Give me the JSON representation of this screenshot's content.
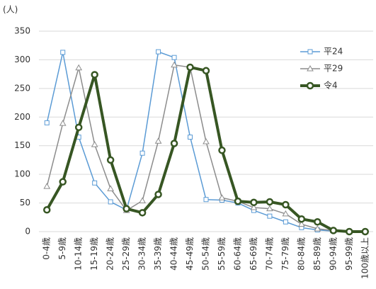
{
  "chart_data": {
    "type": "line",
    "y_label": "(人)",
    "categories": [
      "0-4歳",
      "5-9歳",
      "10-14歳",
      "15-19歳",
      "20-24歳",
      "25-29歳",
      "30-34歳",
      "35-39歳",
      "40-44歳",
      "45-49歳",
      "50-54歳",
      "55-59歳",
      "60-64歳",
      "65-69歳",
      "70-74歳",
      "75-79歳",
      "80-84歳",
      "85-89歳",
      "90-94歳",
      "95-99歳",
      "100歳以上"
    ],
    "series": [
      {
        "name": "平24",
        "color": "#5b9bd5",
        "marker": "square",
        "line_width": 1.5,
        "values": [
          190,
          313,
          165,
          85,
          52,
          38,
          137,
          314,
          304,
          165,
          56,
          55,
          50,
          37,
          27,
          17,
          7,
          3,
          1,
          0,
          0
        ]
      },
      {
        "name": "平29",
        "color": "#8c8c8c",
        "marker": "triangle",
        "line_width": 1.5,
        "values": [
          79,
          189,
          286,
          152,
          75,
          37,
          54,
          158,
          291,
          287,
          157,
          59,
          53,
          42,
          40,
          31,
          13,
          5,
          2,
          0,
          0
        ]
      },
      {
        "name": "令4",
        "color": "#375623",
        "marker": "circle",
        "line_width": 4,
        "values": [
          38,
          87,
          182,
          274,
          125,
          40,
          33,
          65,
          154,
          287,
          281,
          142,
          53,
          51,
          52,
          47,
          22,
          17,
          2,
          0,
          0
        ]
      }
    ],
    "ylim": [
      0,
      350
    ],
    "yticks": [
      0,
      50,
      100,
      150,
      200,
      250,
      300,
      350
    ],
    "grid": true,
    "legend": "upper right"
  }
}
